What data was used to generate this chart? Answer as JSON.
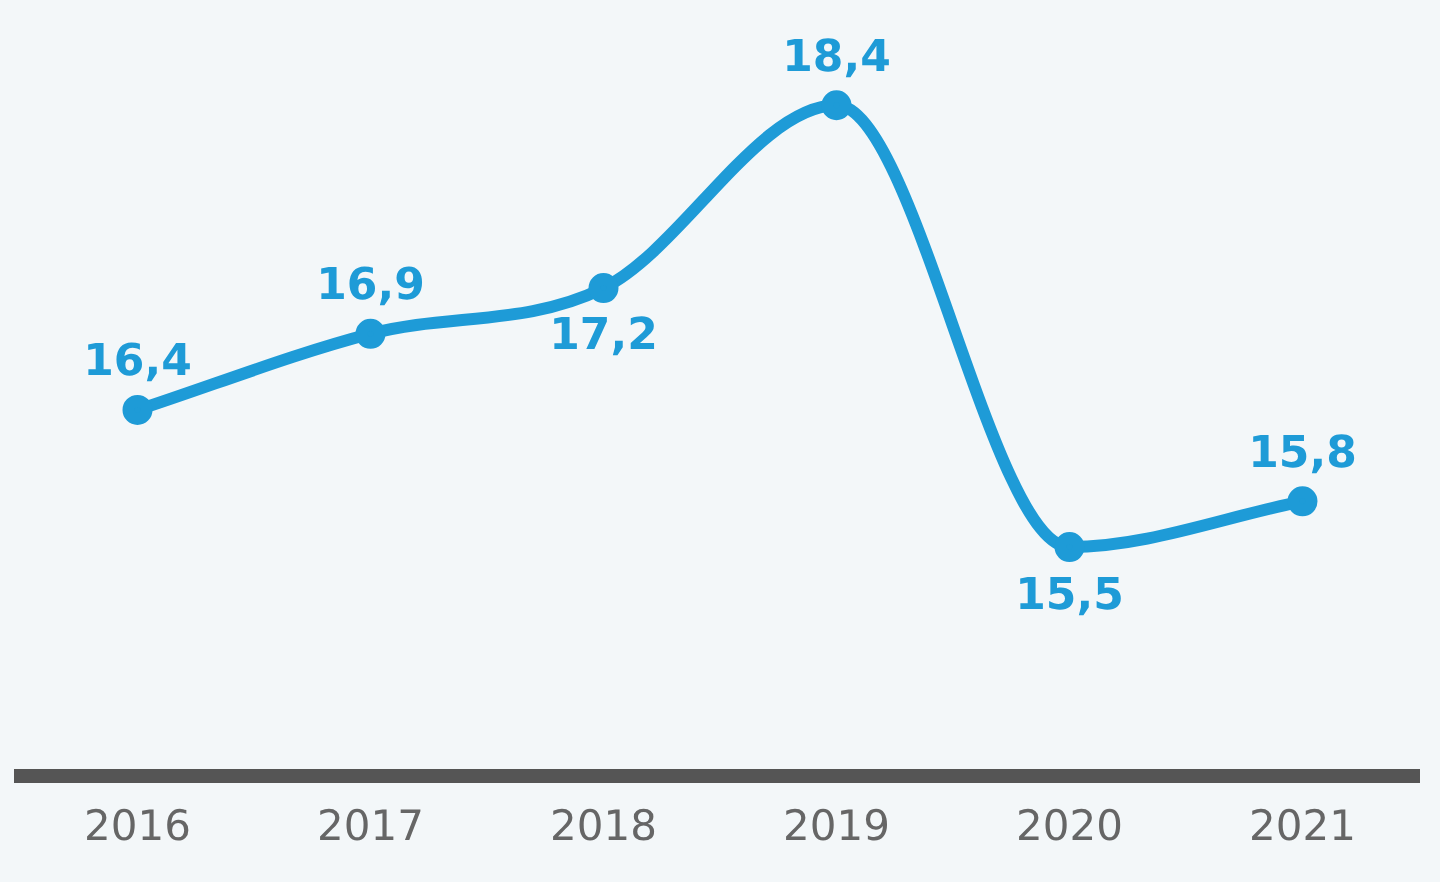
{
  "chart_data": {
    "type": "line",
    "categories": [
      "2016",
      "2017",
      "2018",
      "2019",
      "2020",
      "2021"
    ],
    "series": [
      {
        "color": "#1e9bd7",
        "values": [
          16.4,
          16.9,
          17.2,
          18.4,
          15.5,
          15.8
        ],
        "value_labels": [
          "16,4",
          "16,9",
          "17,2",
          "18,4",
          "15,5",
          "15,8"
        ]
      }
    ],
    "marker": "circle",
    "grid": false,
    "legend": false
  }
}
